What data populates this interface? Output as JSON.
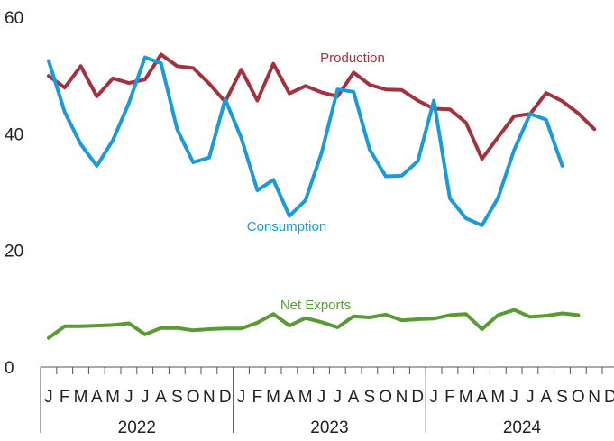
{
  "chart_data": {
    "type": "line",
    "yticks": [
      0,
      20,
      40,
      60
    ],
    "ylim": [
      0,
      60
    ],
    "years": [
      "2022",
      "2023",
      "2024"
    ],
    "month_labels": [
      "J",
      "F",
      "M",
      "A",
      "M",
      "J",
      "J",
      "A",
      "S",
      "O",
      "N",
      "D"
    ],
    "series": [
      {
        "name": "Production",
        "color": "#a33240",
        "values": [
          49.9,
          47.9,
          51.6,
          46.4,
          49.5,
          48.7,
          49.3,
          53.6,
          51.6,
          51.3,
          48.6,
          45.5,
          51.0,
          45.7,
          52.0,
          46.9,
          48.2,
          47.1,
          46.4,
          50.5,
          48.4,
          47.6,
          47.5,
          45.7,
          44.3,
          44.2,
          41.9,
          35.7,
          39.4,
          43.0,
          43.4,
          47.0,
          45.6,
          43.5,
          40.8
        ]
      },
      {
        "name": "Consumption",
        "color": "#1a9bd7",
        "values": [
          52.5,
          43.7,
          38.2,
          34.5,
          38.9,
          45.3,
          53.1,
          52.1,
          40.8,
          35.1,
          35.9,
          45.9,
          39.3,
          30.3,
          32.1,
          25.9,
          28.6,
          36.7,
          47.6,
          47.2,
          37.3,
          32.7,
          32.8,
          35.3,
          45.7,
          28.9,
          25.5,
          24.3,
          29.0,
          37.2,
          43.4,
          42.4,
          34.5
        ]
      },
      {
        "name": "Net Exports",
        "color": "#5a9a35",
        "values": [
          5.0,
          7.0,
          7.0,
          7.1,
          7.2,
          7.5,
          5.6,
          6.7,
          6.7,
          6.3,
          6.5,
          6.6,
          6.6,
          7.6,
          9.1,
          7.1,
          8.4,
          7.7,
          6.8,
          8.7,
          8.5,
          9.0,
          8.0,
          8.2,
          8.3,
          8.9,
          9.1,
          6.5,
          8.9,
          9.8,
          8.6,
          8.8,
          9.2,
          8.9
        ]
      }
    ]
  }
}
